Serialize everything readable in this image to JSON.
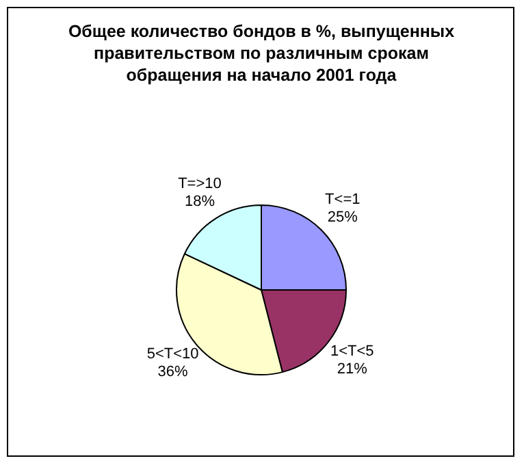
{
  "chart_data": {
    "type": "pie",
    "title": "Общее количество бондов в %, выпущенных правительством по различным срокам обращения на начало 2001 года",
    "categories": [
      "T<=1",
      "1<T<5",
      "5<T<10",
      "T=>10"
    ],
    "values": [
      25,
      21,
      36,
      18
    ],
    "value_labels": [
      "25%",
      "21%",
      "36%",
      "18%"
    ],
    "colors": [
      "#9999ff",
      "#993366",
      "#ffffcc",
      "#ccffff"
    ],
    "legend": false
  }
}
